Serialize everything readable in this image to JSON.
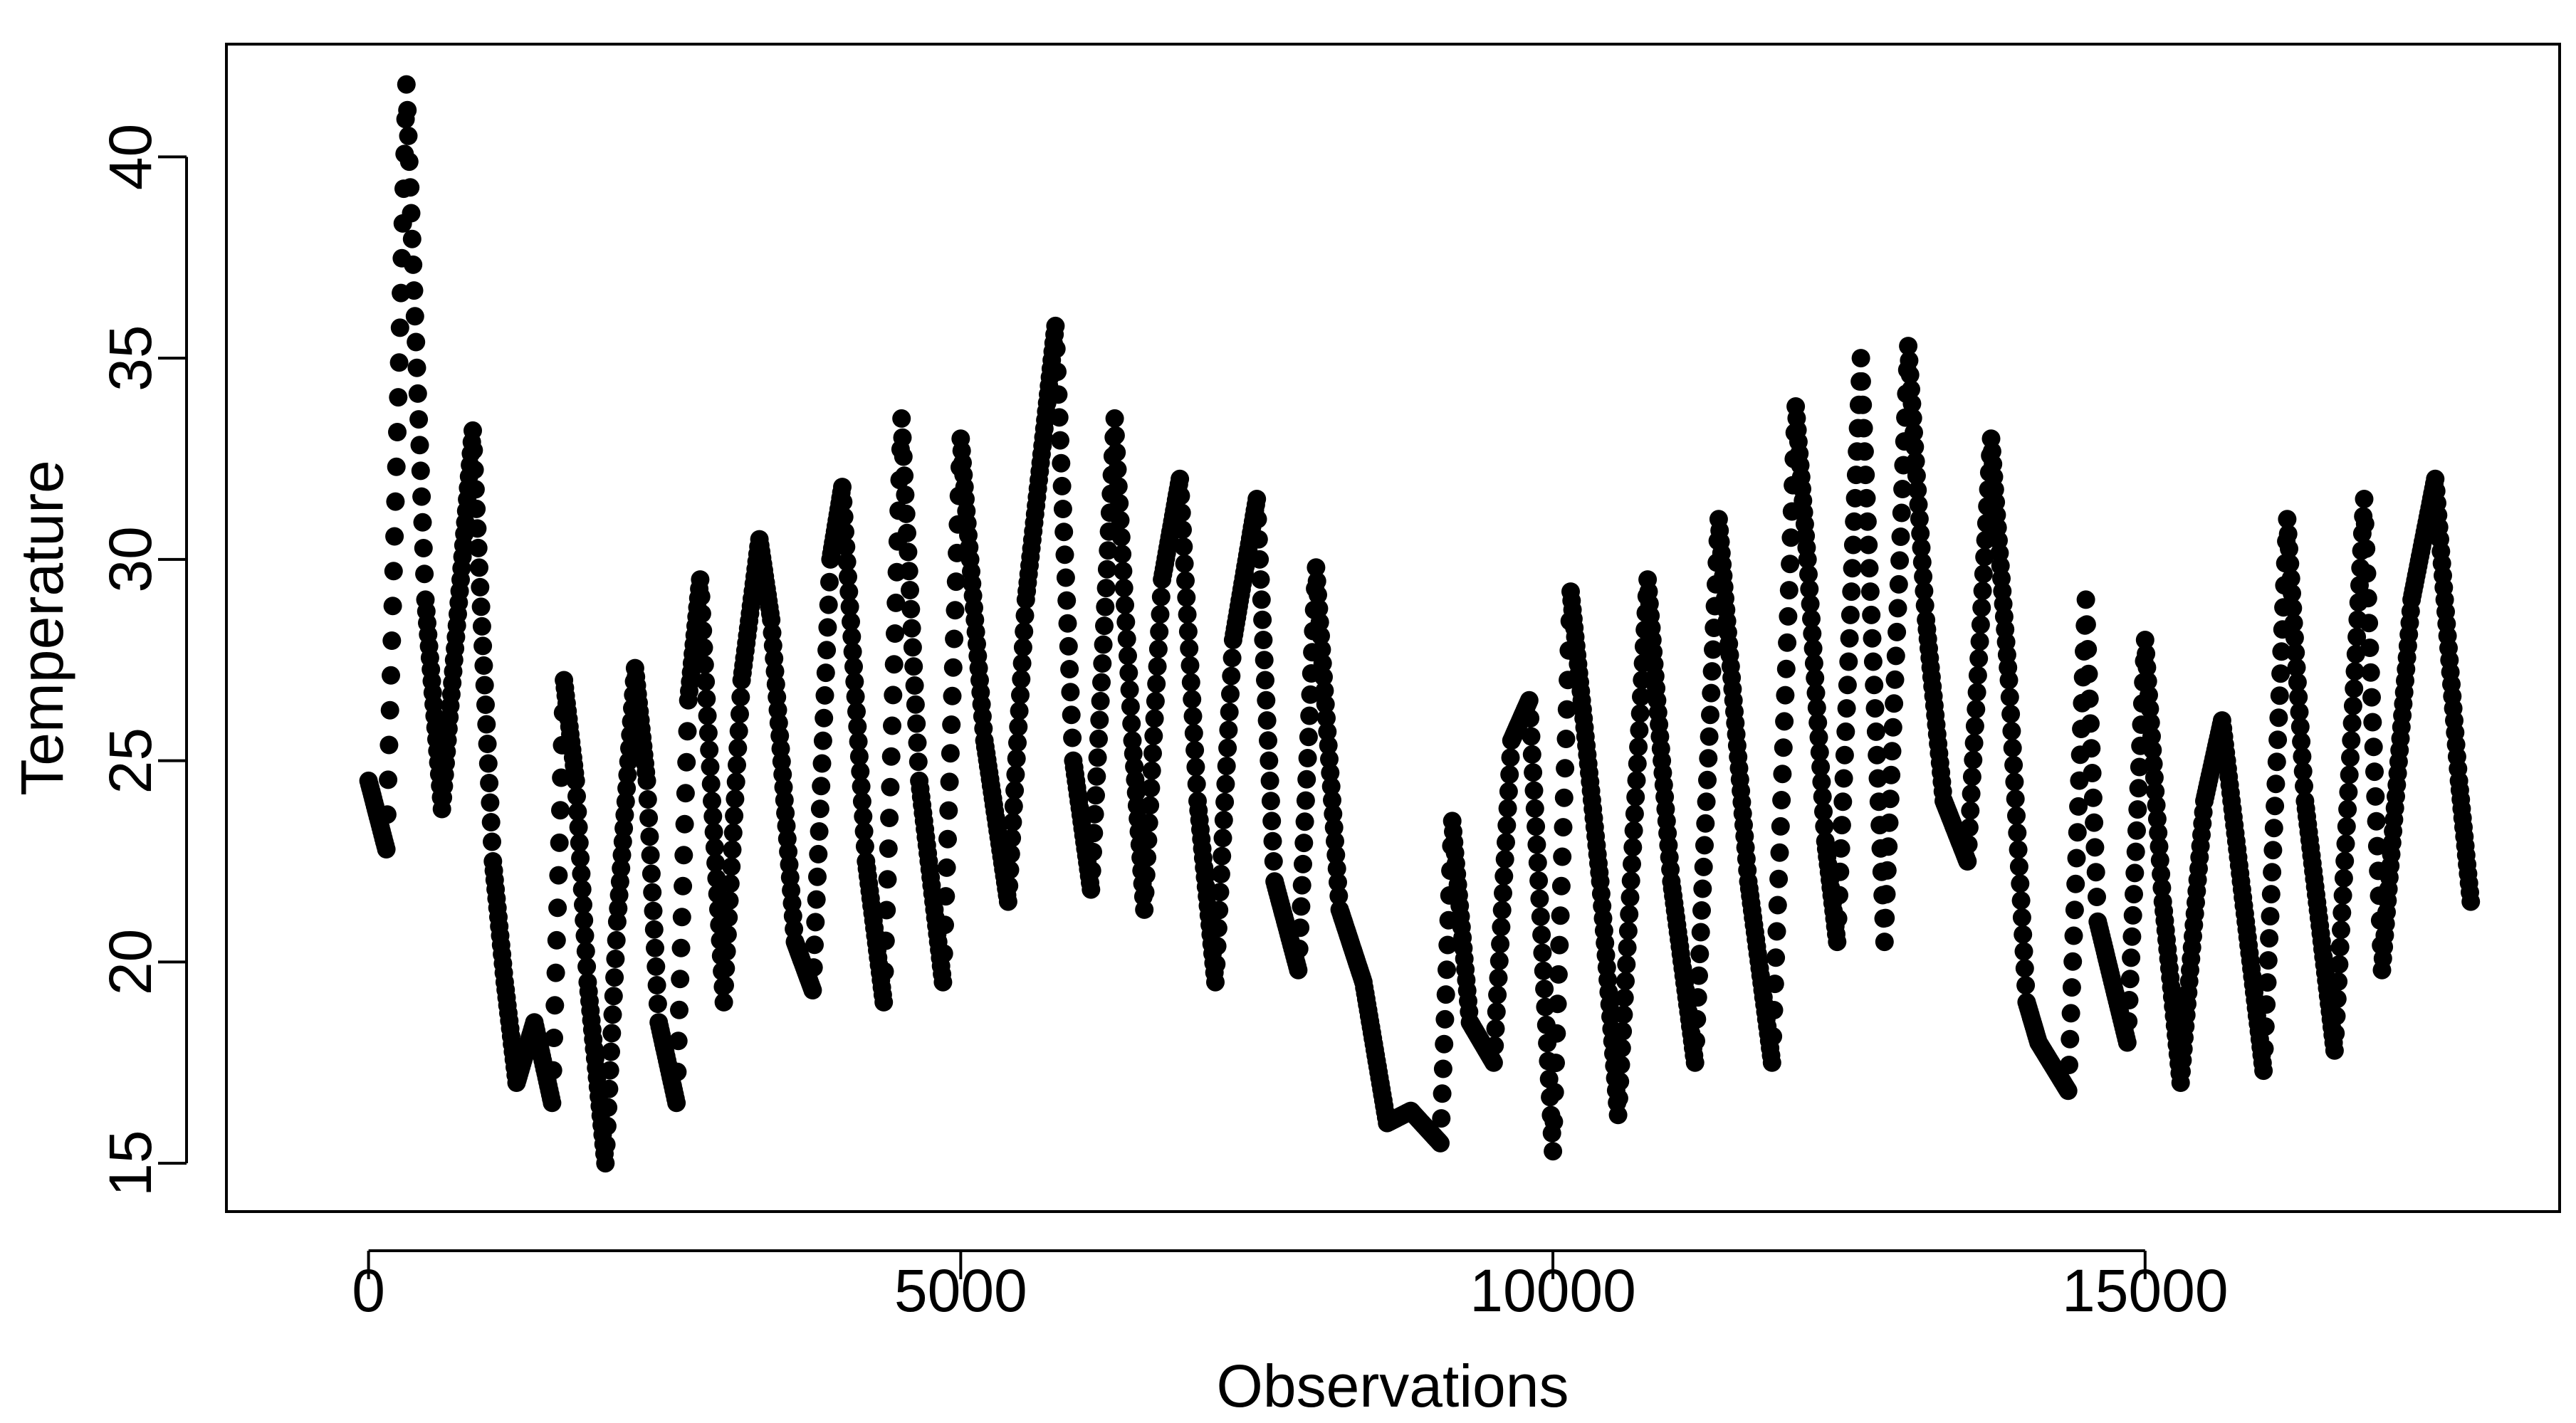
{
  "chart_data": {
    "type": "scatter",
    "title": "",
    "xlabel": "Observations",
    "ylabel": "Temperature",
    "xlim": [
      -1200,
      18500
    ],
    "ylim": [
      13.8,
      42.8
    ],
    "x_ticks": [
      0,
      5000,
      10000,
      15000
    ],
    "x_tick_labels": [
      "0",
      "5000",
      "10000",
      "15000"
    ],
    "y_ticks": [
      15,
      20,
      25,
      30,
      35,
      40
    ],
    "y_tick_labels": [
      "15",
      "20",
      "25",
      "30",
      "35",
      "40"
    ],
    "grid": false,
    "legend": "none",
    "marker_color": "#000000",
    "series": [
      {
        "x": [
          0,
          150,
          320,
          480,
          620,
          880,
          1050,
          1150,
          1250,
          1400,
          1550,
          1650,
          1750,
          1850,
          2000,
          2100,
          2250,
          2350,
          2450,
          2600,
          2700,
          2800,
          2900,
          3000,
          3150,
          3300,
          3400,
          3600,
          3750,
          3900,
          4000,
          4200,
          4350,
          4500,
          4650,
          4850,
          5000,
          5200,
          5400,
          5550,
          5800,
          5950,
          6100,
          6300,
          6450,
          6550,
          6700,
          6850,
          7000,
          7150,
          7300,
          7500,
          7650,
          7850,
          8000,
          8200,
          8400,
          8600,
          8800,
          9050,
          9150,
          9300,
          9500,
          9650,
          9800,
          10000,
          10150,
          10400,
          10550,
          10800,
          11000,
          11200,
          11400,
          11650,
          11850,
          12050,
          12150,
          12300,
          12400,
          12600,
          12800,
          13000,
          13150,
          13300,
          13500,
          13700,
          13850,
          14000,
          14100,
          14350,
          14500,
          14600,
          14850,
          15000,
          15150,
          15300,
          15500,
          15650,
          15850,
          16000,
          16200,
          16350,
          16600,
          16850,
          17000,
          17250,
          17450,
          17650,
          17750
        ],
        "y": [
          24.5,
          22.8,
          41.8,
          29.0,
          23.8,
          33.2,
          22.5,
          19.5,
          17.0,
          18.5,
          16.5,
          27.0,
          24.5,
          19.5,
          15.0,
          21.0,
          27.3,
          24.5,
          18.5,
          16.5,
          26.5,
          29.5,
          24.0,
          19.0,
          27.0,
          30.5,
          28.5,
          20.5,
          19.3,
          30.0,
          31.8,
          22.5,
          19.0,
          33.5,
          24.5,
          19.5,
          33.0,
          25.5,
          21.5,
          29.0,
          35.8,
          25.0,
          21.8,
          33.5,
          25.5,
          21.3,
          29.5,
          32.0,
          24.0,
          19.5,
          28.0,
          31.5,
          22.0,
          19.8,
          29.8,
          21.3,
          19.5,
          16.0,
          16.3,
          15.5,
          23.5,
          18.5,
          17.5,
          25.5,
          26.5,
          15.3,
          29.2,
          22.0,
          16.2,
          29.5,
          22.0,
          17.5,
          31.0,
          22.0,
          17.5,
          33.8,
          30.0,
          23.0,
          20.5,
          35.0,
          20.5,
          35.3,
          28.5,
          24.0,
          22.5,
          33.0,
          27.0,
          19.0,
          18.0,
          16.8,
          29.0,
          21.0,
          18.0,
          28.0,
          21.5,
          17.0,
          24.0,
          26.0,
          21.0,
          17.3,
          31.0,
          24.0,
          17.8,
          31.5,
          19.8,
          29.0,
          32.0,
          24.5,
          21.5
        ]
      }
    ]
  }
}
